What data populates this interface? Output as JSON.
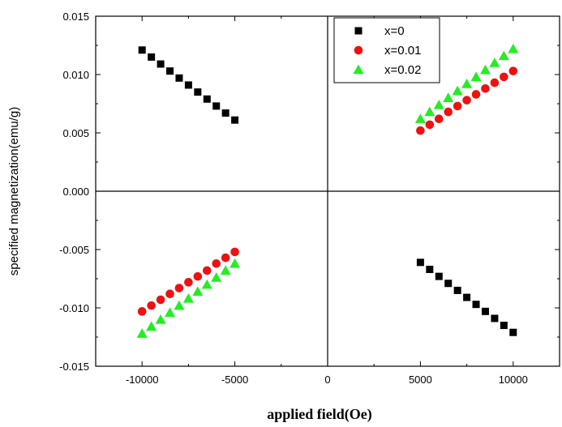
{
  "chart_data": {
    "type": "scatter",
    "title": "",
    "xlabel": "applied field(Oe)",
    "ylabel": "specified magnetization(emu/g)",
    "xlim": [
      -12500,
      12500
    ],
    "ylim": [
      -0.015,
      0.015
    ],
    "xticks": [
      -10000,
      -5000,
      0,
      5000,
      10000
    ],
    "xtick_labels": [
      "-10000",
      "-5000",
      "0",
      "5000",
      "10000"
    ],
    "yticks": [
      -0.015,
      -0.01,
      -0.005,
      0.0,
      0.005,
      0.01,
      0.015
    ],
    "ytick_labels": [
      "-0.015",
      "-0.010",
      "-0.005",
      "0.000",
      "0.005",
      "0.010",
      "0.015"
    ],
    "grid": false,
    "zero_lines": true,
    "legend_position": "top-right",
    "series": [
      {
        "name": "x=0",
        "marker": "square",
        "color": "#000000",
        "x": [
          -10000,
          -9500,
          -9000,
          -8500,
          -8000,
          -7500,
          -7000,
          -6500,
          -6000,
          -5500,
          -5000,
          5000,
          5500,
          6000,
          6500,
          7000,
          7500,
          8000,
          8500,
          9000,
          9500,
          10000
        ],
        "y": [
          0.0121,
          0.0115,
          0.0109,
          0.0103,
          0.0097,
          0.0091,
          0.0085,
          0.0079,
          0.0073,
          0.0067,
          0.0061,
          -0.0061,
          -0.0067,
          -0.0073,
          -0.0079,
          -0.0085,
          -0.0091,
          -0.0097,
          -0.0103,
          -0.0109,
          -0.0115,
          -0.0121
        ]
      },
      {
        "name": "x=0.01",
        "marker": "circle",
        "color": "#ee1111",
        "x": [
          -10000,
          -9500,
          -9000,
          -8500,
          -8000,
          -7500,
          -7000,
          -6500,
          -6000,
          -5500,
          -5000,
          5000,
          5500,
          6000,
          6500,
          7000,
          7500,
          8000,
          8500,
          9000,
          9500,
          10000
        ],
        "y": [
          -0.0103,
          -0.0098,
          -0.0093,
          -0.0088,
          -0.0083,
          -0.0078,
          -0.0073,
          -0.0068,
          -0.0062,
          -0.0057,
          -0.0052,
          0.0052,
          0.0057,
          0.0062,
          0.0068,
          0.0073,
          0.0078,
          0.0083,
          0.0088,
          0.0093,
          0.0098,
          0.0103
        ]
      },
      {
        "name": "x=0.02",
        "marker": "triangle",
        "color": "#22ee22",
        "x": [
          -10000,
          -9500,
          -9000,
          -8500,
          -8000,
          -7500,
          -7000,
          -6500,
          -6000,
          -5500,
          -5000,
          5000,
          5500,
          6000,
          6500,
          7000,
          7500,
          8000,
          8500,
          9000,
          9500,
          10000
        ],
        "y": [
          -0.0122,
          -0.0116,
          -0.011,
          -0.0104,
          -0.0098,
          -0.0092,
          -0.0086,
          -0.008,
          -0.0074,
          -0.0068,
          -0.0062,
          0.0062,
          0.0068,
          0.0074,
          0.008,
          0.0086,
          0.0092,
          0.0098,
          0.0104,
          0.011,
          0.0116,
          0.0122
        ]
      }
    ]
  }
}
